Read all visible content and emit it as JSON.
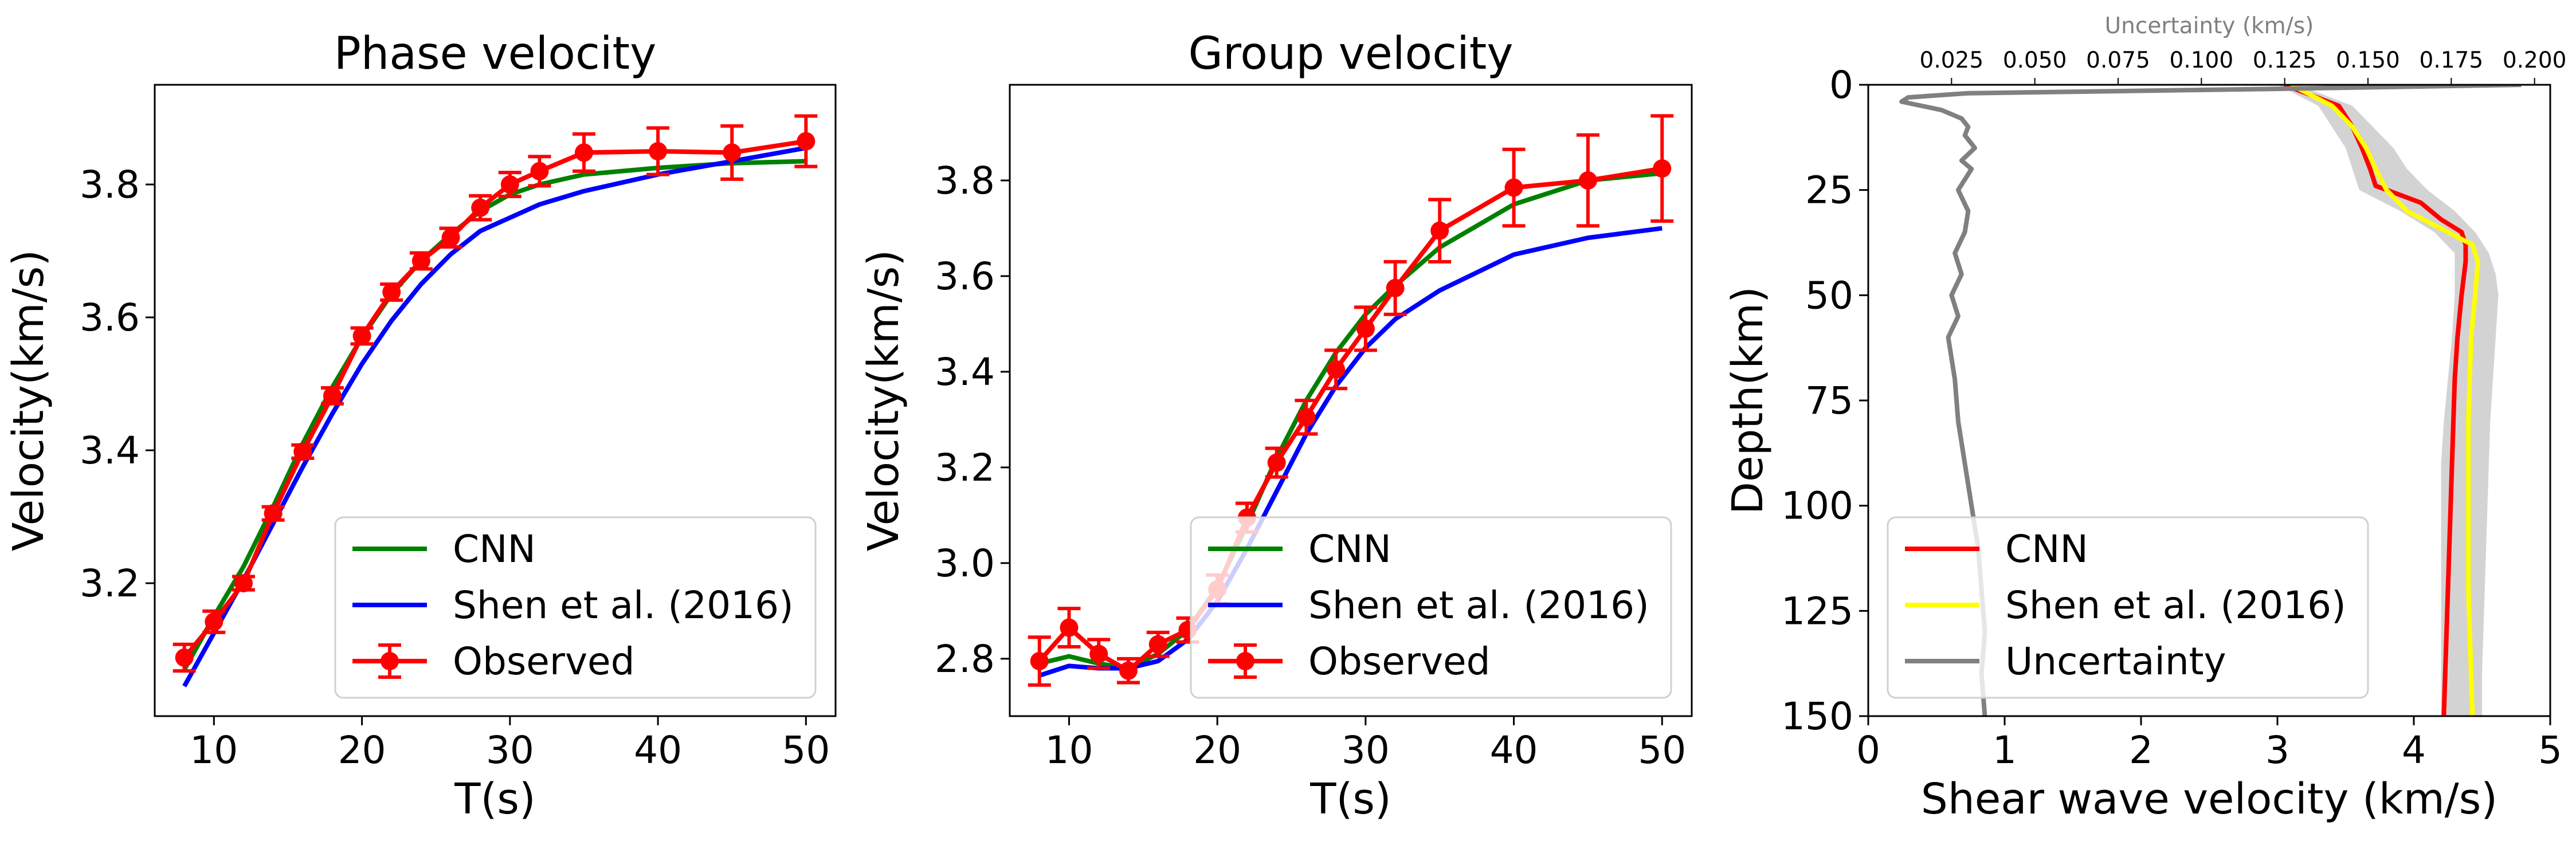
{
  "chart_data": [
    {
      "type": "line",
      "title": "Phase velocity",
      "xlabel": "T(s)",
      "ylabel": "Velocity(km/s)",
      "xlim": [
        6,
        52
      ],
      "ylim": [
        3.0,
        3.95
      ],
      "xticks": [
        10,
        20,
        30,
        40,
        50
      ],
      "yticks": [
        3.2,
        3.4,
        3.6,
        3.8
      ],
      "xtick_labels": [
        "10",
        "20",
        "30",
        "40",
        "50"
      ],
      "ytick_labels": [
        "3.2",
        "3.4",
        "3.6",
        "3.8"
      ],
      "legend": "lower-right",
      "series": [
        {
          "name": "CNN",
          "color": "#008000",
          "x": [
            8,
            10,
            12,
            14,
            16,
            18,
            20,
            22,
            24,
            26,
            28,
            30,
            32,
            35,
            40,
            45,
            50
          ],
          "y": [
            3.07,
            3.15,
            3.225,
            3.315,
            3.41,
            3.495,
            3.57,
            3.635,
            3.685,
            3.725,
            3.76,
            3.785,
            3.8,
            3.815,
            3.825,
            3.832,
            3.835
          ]
        },
        {
          "name": "Shen et al. (2016)",
          "color": "#0000ff",
          "x": [
            8,
            10,
            12,
            14,
            16,
            18,
            20,
            22,
            24,
            26,
            28,
            30,
            32,
            35,
            40,
            45,
            50
          ],
          "y": [
            3.045,
            3.125,
            3.205,
            3.29,
            3.375,
            3.455,
            3.53,
            3.595,
            3.65,
            3.695,
            3.73,
            3.75,
            3.77,
            3.79,
            3.815,
            3.835,
            3.855
          ]
        },
        {
          "name": "Observed",
          "color": "#ff0000",
          "x": [
            8,
            10,
            12,
            14,
            16,
            18,
            20,
            22,
            24,
            26,
            28,
            30,
            32,
            35,
            40,
            45,
            50
          ],
          "y": [
            3.088,
            3.142,
            3.2,
            3.305,
            3.398,
            3.482,
            3.572,
            3.638,
            3.685,
            3.72,
            3.765,
            3.8,
            3.82,
            3.848,
            3.85,
            3.848,
            3.865
          ],
          "err": [
            0.02,
            0.016,
            0.01,
            0.01,
            0.01,
            0.012,
            0.012,
            0.012,
            0.012,
            0.014,
            0.018,
            0.018,
            0.022,
            0.028,
            0.035,
            0.04,
            0.038
          ]
        }
      ]
    },
    {
      "type": "line",
      "title": "Group velocity",
      "xlabel": "T(s)",
      "ylabel": "Velocity(km/s)",
      "xlim": [
        6,
        52
      ],
      "ylim": [
        2.68,
        4.0
      ],
      "xticks": [
        10,
        20,
        30,
        40,
        50
      ],
      "yticks": [
        2.8,
        3.0,
        3.2,
        3.4,
        3.6,
        3.8
      ],
      "xtick_labels": [
        "10",
        "20",
        "30",
        "40",
        "50"
      ],
      "ytick_labels": [
        "2.8",
        "3.0",
        "3.2",
        "3.4",
        "3.6",
        "3.8"
      ],
      "legend": "lower-right",
      "series": [
        {
          "name": "CNN",
          "color": "#008000",
          "x": [
            8,
            10,
            12,
            14,
            16,
            18,
            20,
            22,
            24,
            26,
            28,
            30,
            32,
            35,
            40,
            45,
            50
          ],
          "y": [
            2.79,
            2.805,
            2.79,
            2.78,
            2.81,
            2.86,
            2.95,
            3.08,
            3.22,
            3.34,
            3.44,
            3.52,
            3.58,
            3.66,
            3.75,
            3.8,
            3.815
          ]
        },
        {
          "name": "Shen et al. (2016)",
          "color": "#0000ff",
          "x": [
            8,
            10,
            12,
            14,
            16,
            18,
            20,
            22,
            24,
            26,
            28,
            30,
            32,
            35,
            40,
            45,
            50
          ],
          "y": [
            2.765,
            2.785,
            2.78,
            2.78,
            2.795,
            2.84,
            2.92,
            3.03,
            3.15,
            3.27,
            3.37,
            3.45,
            3.51,
            3.57,
            3.645,
            3.68,
            3.7
          ]
        },
        {
          "name": "Observed",
          "color": "#ff0000",
          "x": [
            8,
            10,
            12,
            14,
            16,
            18,
            20,
            22,
            24,
            26,
            28,
            30,
            32,
            35,
            40,
            45,
            50
          ],
          "y": [
            2.795,
            2.865,
            2.81,
            2.775,
            2.83,
            2.86,
            2.945,
            3.095,
            3.21,
            3.305,
            3.405,
            3.49,
            3.575,
            3.695,
            3.785,
            3.8,
            3.825
          ],
          "err": [
            0.05,
            0.04,
            0.03,
            0.025,
            0.025,
            0.025,
            0.03,
            0.03,
            0.03,
            0.035,
            0.04,
            0.045,
            0.055,
            0.065,
            0.08,
            0.095,
            0.11
          ]
        }
      ]
    },
    {
      "type": "line",
      "title": "",
      "xlabel": "Shear wave velocity (km/s)",
      "ylabel": "Depth(km)",
      "top_xlabel": "Uncertainty (km/s)",
      "xlim": [
        0,
        5
      ],
      "ylim": [
        150,
        0
      ],
      "top_xlim": [
        0.0,
        0.2047
      ],
      "xticks": [
        0,
        1,
        2,
        3,
        4,
        5
      ],
      "yticks": [
        0,
        25,
        50,
        75,
        100,
        125,
        150
      ],
      "top_xticks": [
        0.025,
        0.05,
        0.075,
        0.1,
        0.125,
        0.15,
        0.175,
        0.2
      ],
      "xtick_labels": [
        "0",
        "1",
        "2",
        "3",
        "4",
        "5"
      ],
      "ytick_labels": [
        "0",
        "25",
        "50",
        "75",
        "100",
        "125",
        "150"
      ],
      "top_xtick_labels": [
        "0.025",
        "0.050",
        "0.075",
        "0.100",
        "0.125",
        "0.150",
        "0.175",
        "0.200"
      ],
      "legend": "lower-left",
      "uncertainty_band_color": "#d3d3d3",
      "uncertainty_band": {
        "depth": [
          0,
          5,
          10,
          15,
          20,
          25,
          30,
          35,
          40,
          45,
          50,
          60,
          70,
          80,
          90,
          100,
          110,
          120,
          130,
          140,
          150
        ],
        "lower": [
          3.0,
          3.3,
          3.4,
          3.5,
          3.55,
          3.6,
          3.9,
          4.15,
          4.3,
          4.3,
          4.3,
          4.28,
          4.25,
          4.22,
          4.2,
          4.2,
          4.2,
          4.2,
          4.2,
          4.2,
          4.2
        ],
        "upper": [
          3.15,
          3.55,
          3.7,
          3.85,
          3.95,
          4.1,
          4.3,
          4.45,
          4.55,
          4.6,
          4.62,
          4.6,
          4.58,
          4.56,
          4.55,
          4.54,
          4.53,
          4.52,
          4.51,
          4.5,
          4.5
        ]
      },
      "series": [
        {
          "name": "CNN",
          "color": "#ff0000",
          "axis": "bottom",
          "depth": [
            0,
            5,
            10,
            15,
            20,
            24,
            28,
            32,
            35,
            38,
            42,
            50,
            60,
            70,
            80,
            90,
            100,
            110,
            120,
            130,
            140,
            150
          ],
          "vs": [
            3.05,
            3.45,
            3.55,
            3.62,
            3.68,
            3.72,
            4.05,
            4.2,
            4.35,
            4.38,
            4.38,
            4.35,
            4.32,
            4.3,
            4.29,
            4.28,
            4.27,
            4.26,
            4.25,
            4.24,
            4.23,
            4.22
          ]
        },
        {
          "name": "Shen et al. (2016)",
          "color": "#ffff00",
          "axis": "bottom",
          "depth": [
            0,
            5,
            10,
            15,
            20,
            25,
            30,
            35,
            38,
            42,
            50,
            60,
            70,
            80,
            90,
            100,
            110,
            120,
            130,
            140,
            150
          ],
          "vs": [
            3.1,
            3.4,
            3.55,
            3.65,
            3.72,
            3.8,
            3.95,
            4.25,
            4.43,
            4.47,
            4.45,
            4.42,
            4.41,
            4.4,
            4.4,
            4.4,
            4.4,
            4.4,
            4.41,
            4.42,
            4.43
          ]
        },
        {
          "name": "Uncertainty",
          "color": "#808080",
          "axis": "top",
          "depth": [
            0,
            1,
            2,
            3,
            4,
            5,
            6,
            8,
            10,
            12,
            15,
            18,
            20,
            25,
            30,
            35,
            40,
            45,
            50,
            55,
            60,
            70,
            80,
            90,
            100,
            110,
            120,
            130,
            140,
            150
          ],
          "unc": [
            0.196,
            0.12,
            0.03,
            0.012,
            0.01,
            0.016,
            0.022,
            0.028,
            0.03,
            0.029,
            0.032,
            0.028,
            0.031,
            0.027,
            0.03,
            0.029,
            0.026,
            0.028,
            0.025,
            0.027,
            0.024,
            0.026,
            0.027,
            0.029,
            0.031,
            0.033,
            0.034,
            0.035,
            0.034,
            0.035
          ]
        }
      ]
    }
  ]
}
